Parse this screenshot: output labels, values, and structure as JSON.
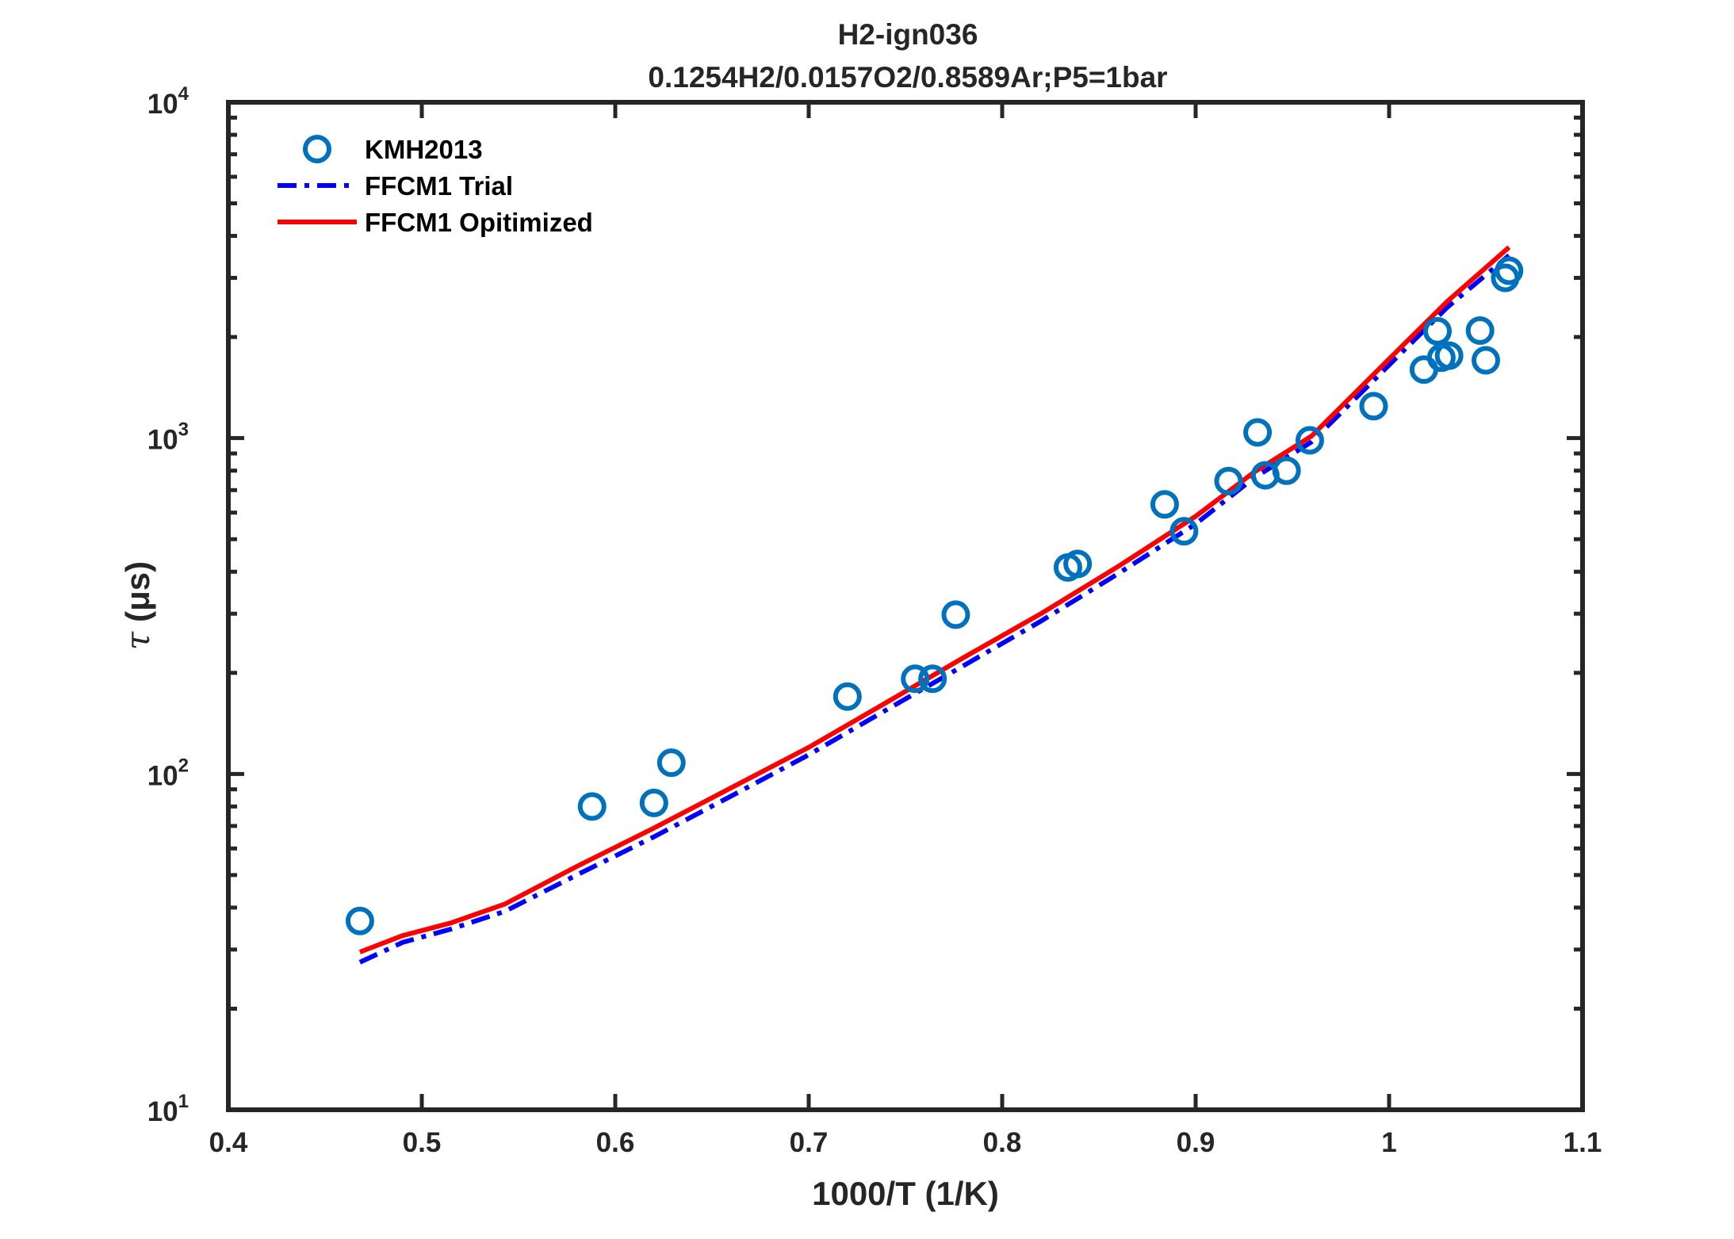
{
  "chart_data": {
    "type": "scatter",
    "title": "H2-ign036",
    "subtitle": "0.1254H2/0.0157O2/0.8589Ar;P5=1bar",
    "xlabel": "1000/T (1/K)",
    "ylabel_symbol": "τ",
    "ylabel_unit": "(μs)",
    "xlim": [
      0.4,
      1.1
    ],
    "ylim": [
      10,
      10000
    ],
    "yscale": "log",
    "grid": false,
    "legend_position": "top-left",
    "x_ticks": [
      {
        "value": 0.4,
        "label": "0.4"
      },
      {
        "value": 0.5,
        "label": "0.5"
      },
      {
        "value": 0.6,
        "label": "0.6"
      },
      {
        "value": 0.7,
        "label": "0.7"
      },
      {
        "value": 0.8,
        "label": "0.8"
      },
      {
        "value": 0.9,
        "label": "0.9"
      },
      {
        "value": 1.0,
        "label": "1"
      },
      {
        "value": 1.1,
        "label": "1.1"
      }
    ],
    "y_ticks": [
      {
        "value": 10,
        "base": "10",
        "exp": "1"
      },
      {
        "value": 100,
        "base": "10",
        "exp": "2"
      },
      {
        "value": 1000,
        "base": "10",
        "exp": "3"
      },
      {
        "value": 10000,
        "base": "10",
        "exp": "4"
      }
    ],
    "series": [
      {
        "name": "KMH2013",
        "kind": "markers",
        "color": "#0072BD",
        "points": [
          [
            0.468,
            36.5
          ],
          [
            0.588,
            80
          ],
          [
            0.62,
            82
          ],
          [
            0.629,
            108
          ],
          [
            0.72,
            170
          ],
          [
            0.755,
            192
          ],
          [
            0.764,
            192
          ],
          [
            0.776,
            298
          ],
          [
            0.834,
            412
          ],
          [
            0.839,
            422
          ],
          [
            0.884,
            635
          ],
          [
            0.894,
            528
          ],
          [
            0.917,
            745
          ],
          [
            0.932,
            1040
          ],
          [
            0.936,
            775
          ],
          [
            0.947,
            800
          ],
          [
            0.959,
            985
          ],
          [
            0.992,
            1245
          ],
          [
            1.018,
            1600
          ],
          [
            1.025,
            2080
          ],
          [
            1.027,
            1735
          ],
          [
            1.031,
            1760
          ],
          [
            1.047,
            2090
          ],
          [
            1.05,
            1705
          ],
          [
            1.06,
            3000
          ],
          [
            1.062,
            3150
          ]
        ]
      },
      {
        "name": "FFCM1 Trial",
        "kind": "line",
        "style": "dashdot",
        "color": "#0000FF",
        "points": [
          [
            0.468,
            27.5
          ],
          [
            0.49,
            31.5
          ],
          [
            0.515,
            34.5
          ],
          [
            0.543,
            39
          ],
          [
            0.58,
            50
          ],
          [
            0.62,
            65
          ],
          [
            0.66,
            86
          ],
          [
            0.7,
            114
          ],
          [
            0.74,
            155
          ],
          [
            0.78,
            210
          ],
          [
            0.82,
            285
          ],
          [
            0.86,
            395
          ],
          [
            0.9,
            555
          ],
          [
            0.93,
            760
          ],
          [
            0.96,
            975
          ],
          [
            1.0,
            1650
          ],
          [
            1.03,
            2450
          ],
          [
            1.062,
            3500
          ]
        ]
      },
      {
        "name": "FFCM1 Opitimized",
        "kind": "line",
        "style": "solid",
        "color": "#FF0000",
        "points": [
          [
            0.468,
            29.5
          ],
          [
            0.49,
            33
          ],
          [
            0.515,
            36
          ],
          [
            0.543,
            41
          ],
          [
            0.58,
            53
          ],
          [
            0.62,
            69
          ],
          [
            0.66,
            91
          ],
          [
            0.7,
            120
          ],
          [
            0.74,
            163
          ],
          [
            0.78,
            222
          ],
          [
            0.82,
            300
          ],
          [
            0.86,
            415
          ],
          [
            0.9,
            585
          ],
          [
            0.93,
            790
          ],
          [
            0.96,
            1015
          ],
          [
            1.0,
            1720
          ],
          [
            1.03,
            2550
          ],
          [
            1.062,
            3700
          ]
        ]
      }
    ]
  }
}
